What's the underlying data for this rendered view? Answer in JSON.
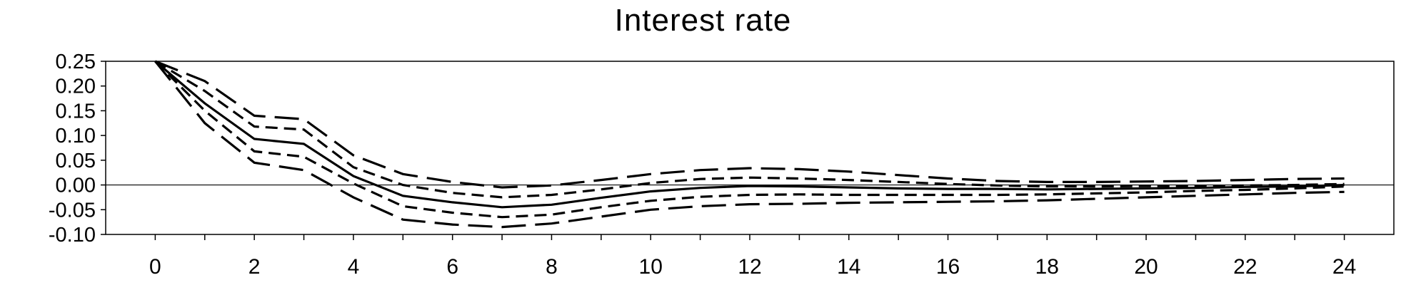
{
  "chart_data": {
    "type": "line",
    "title": "Interest rate",
    "xlabel": "",
    "ylabel": "",
    "xlim": [
      -1,
      25
    ],
    "ylim": [
      -0.1,
      0.25
    ],
    "x_ticks": [
      "0",
      "2",
      "4",
      "6",
      "8",
      "10",
      "12",
      "14",
      "16",
      "18",
      "20",
      "22",
      "24"
    ],
    "y_ticks": [
      "0.25",
      "0.20",
      "0.15",
      "0.10",
      "0.05",
      "0.00",
      "-0.05",
      "-0.10"
    ],
    "zero_line": true,
    "grid": false,
    "legend": "none",
    "x": [
      0,
      1,
      2,
      3,
      4,
      5,
      6,
      7,
      8,
      9,
      10,
      11,
      12,
      13,
      14,
      15,
      16,
      17,
      18,
      19,
      20,
      21,
      22,
      23,
      24
    ],
    "series": [
      {
        "style": "solid",
        "values": [
          0.25,
          0.165,
          0.093,
          0.083,
          0.018,
          -0.022,
          -0.035,
          -0.045,
          -0.04,
          -0.026,
          -0.013,
          -0.006,
          -0.002,
          -0.003,
          -0.005,
          -0.007,
          -0.008,
          -0.008,
          -0.009,
          -0.008,
          -0.007,
          -0.006,
          -0.004,
          -0.003,
          0.0
        ]
      },
      {
        "style": "dashed",
        "values": [
          0.25,
          0.19,
          0.118,
          0.112,
          0.036,
          0.0,
          -0.016,
          -0.025,
          -0.02,
          -0.009,
          0.004,
          0.012,
          0.015,
          0.013,
          0.01,
          0.006,
          0.002,
          -0.001,
          -0.003,
          -0.003,
          -0.002,
          -0.002,
          -0.001,
          0.0,
          0.002
        ]
      },
      {
        "style": "dashed",
        "values": [
          0.25,
          0.15,
          0.068,
          0.057,
          0.003,
          -0.043,
          -0.056,
          -0.065,
          -0.06,
          -0.045,
          -0.032,
          -0.024,
          -0.02,
          -0.019,
          -0.02,
          -0.02,
          -0.02,
          -0.02,
          -0.019,
          -0.017,
          -0.015,
          -0.012,
          -0.01,
          -0.007,
          -0.003
        ]
      },
      {
        "style": "longdash",
        "values": [
          0.25,
          0.21,
          0.14,
          0.133,
          0.06,
          0.022,
          0.006,
          -0.005,
          -0.001,
          0.01,
          0.022,
          0.03,
          0.034,
          0.032,
          0.027,
          0.02,
          0.013,
          0.008,
          0.006,
          0.006,
          0.007,
          0.008,
          0.01,
          0.012,
          0.013
        ]
      },
      {
        "style": "longdash",
        "values": [
          0.25,
          0.125,
          0.045,
          0.03,
          -0.025,
          -0.07,
          -0.08,
          -0.085,
          -0.078,
          -0.064,
          -0.05,
          -0.043,
          -0.039,
          -0.038,
          -0.036,
          -0.035,
          -0.034,
          -0.033,
          -0.031,
          -0.028,
          -0.025,
          -0.022,
          -0.019,
          -0.016,
          -0.014
        ]
      }
    ]
  }
}
